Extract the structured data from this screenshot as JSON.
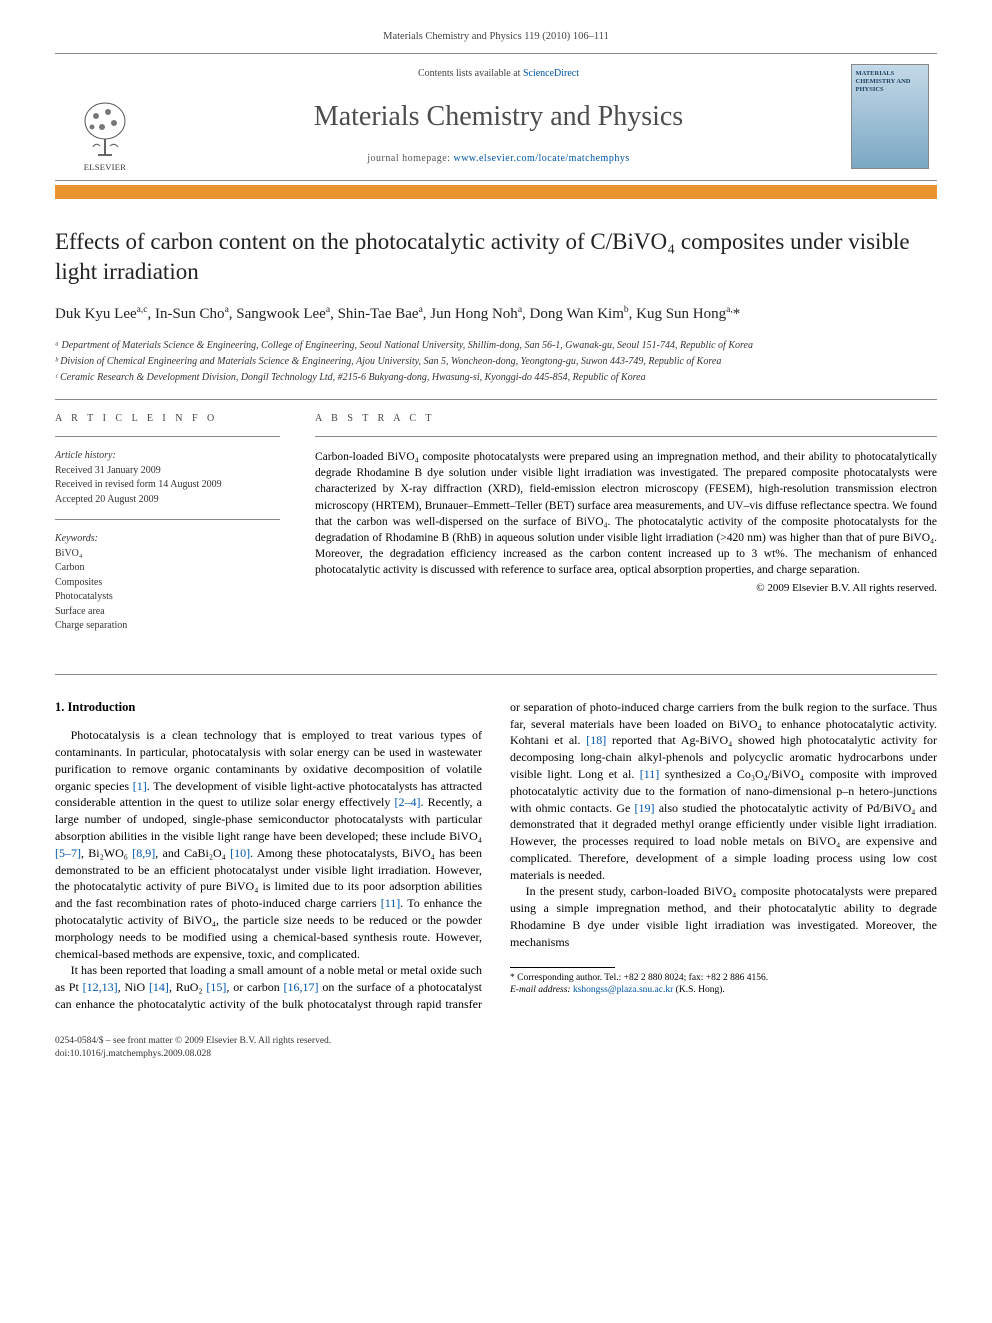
{
  "header_citation": "Materials Chemistry and Physics 119 (2010) 106–111",
  "banner": {
    "contents_prefix": "Contents lists available at ",
    "contents_link": "ScienceDirect",
    "journal_name": "Materials Chemistry and Physics",
    "homepage_prefix": "journal homepage: ",
    "homepage_url": "www.elsevier.com/locate/matchemphys",
    "publisher": "ELSEVIER",
    "cover_text": "MATERIALS CHEMISTRY AND PHYSICS"
  },
  "title": "Effects of carbon content on the photocatalytic activity of C/BiVO₄ composites under visible light irradiation",
  "authors_html": "Duk Kyu Lee<sup>a,c</sup>, In-Sun Cho<sup>a</sup>, Sangwook Lee<sup>a</sup>, Shin-Tae Bae<sup>a</sup>, Jun Hong Noh<sup>a</sup>, Dong Wan Kim<sup>b</sup>, Kug Sun Hong<sup>a,</sup>*",
  "affiliations": [
    "ᵃ Department of Materials Science & Engineering, College of Engineering, Seoul National University, Shillim-dong, San 56-1, Gwanak-gu, Seoul 151-744, Republic of Korea",
    "ᵇ Division of Chemical Engineering and Materials Science & Engineering, Ajou University, San 5, Woncheon-dong, Yeongtong-gu, Suwon 443-749, Republic of Korea",
    "ᶜ Ceramic Research & Development Division, Dongil Technology Ltd, #215-6 Bukyang-dong, Hwasung-si, Kyonggi-do 445-854, Republic of Korea"
  ],
  "article_info": {
    "heading": "A R T I C L E   I N F O",
    "history_label": "Article history:",
    "received": "Received 31 January 2009",
    "revised": "Received in revised form 14 August 2009",
    "accepted": "Accepted 20 August 2009",
    "keywords_label": "Keywords:",
    "keywords": [
      "BiVO₄",
      "Carbon",
      "Composites",
      "Photocatalysts",
      "Surface area",
      "Charge separation"
    ]
  },
  "abstract": {
    "heading": "A B S T R A C T",
    "text": "Carbon-loaded BiVO₄ composite photocatalysts were prepared using an impregnation method, and their ability to photocatalytically degrade Rhodamine B dye solution under visible light irradiation was investigated. The prepared composite photocatalysts were characterized by X-ray diffraction (XRD), field-emission electron microscopy (FESEM), high-resolution transmission electron microscopy (HRTEM), Brunauer–Emmett–Teller (BET) surface area measurements, and UV–vis diffuse reflectance spectra. We found that the carbon was well-dispersed on the surface of BiVO₄. The photocatalytic activity of the composite photocatalysts for the degradation of Rhodamine B (RhB) in aqueous solution under visible light irradiation (>420 nm) was higher than that of pure BiVO₄. Moreover, the degradation efficiency increased as the carbon content increased up to 3 wt%. The mechanism of enhanced photocatalytic activity is discussed with reference to surface area, optical absorption properties, and charge separation.",
    "copyright": "© 2009 Elsevier B.V. All rights reserved."
  },
  "section1_heading": "1. Introduction",
  "body_paragraphs": [
    "Photocatalysis is a clean technology that is employed to treat various types of contaminants. In particular, photocatalysis with solar energy can be used in wastewater purification to remove organic contaminants by oxidative decomposition of volatile organic species <a href='#'>[1]</a>. The development of visible light-active photocatalysts has attracted considerable attention in the quest to utilize solar energy effectively <a href='#'>[2–4]</a>. Recently, a large number of undoped, single-phase semiconductor photocatalysts with particular absorption abilities in the visible light range have been developed; these include BiVO₄ <a href='#'>[5–7]</a>, Bi₂WO₆ <a href='#'>[8,9]</a>, and CaBi₂O₄ <a href='#'>[10]</a>. Among these photocatalysts, BiVO₄ has been demonstrated to be an efficient photocatalyst under visible light irradiation. However, the photocatalytic activity of pure BiVO₄ is limited due to its poor adsorption abilities and the fast recombination rates of photo-induced charge carriers <a href='#'>[11]</a>. To enhance the photocatalytic activity of BiVO₄, the particle size needs to be reduced or the powder morphology needs to be modified using a chemical-based synthesis route. However, chemical-based methods are expensive, toxic, and complicated.",
    "It has been reported that loading a small amount of a noble metal or metal oxide such as Pt <a href='#'>[12,13]</a>, NiO <a href='#'>[14]</a>, RuO₂ <a href='#'>[15]</a>, or carbon <a href='#'>[16,17]</a> on the surface of a photocatalyst can enhance the photocatalytic activity of the bulk photocatalyst through rapid transfer or separation of photo-induced charge carriers from the bulk region to the surface. Thus far, several materials have been loaded on BiVO₄ to enhance photocatalytic activity. Kohtani et al. <a href='#'>[18]</a> reported that Ag-BiVO₄ showed high photocatalytic activity for decomposing long-chain alkyl-phenols and polycyclic aromatic hydrocarbons under visible light. Long et al. <a href='#'>[11]</a> synthesized a Co₃O₄/BiVO₄ composite with improved photocatalytic activity due to the formation of nano-dimensional p–n hetero-junctions with ohmic contacts. Ge <a href='#'>[19]</a> also studied the photocatalytic activity of Pd/BiVO₄ and demonstrated that it degraded methyl orange efficiently under visible light irradiation. However, the processes required to load noble metals on BiVO₄ are expensive and complicated. Therefore, development of a simple loading process using low cost materials is needed.",
    "In the present study, carbon-loaded BiVO₄ composite photocatalysts were prepared using a simple impregnation method, and their photocatalytic ability to degrade Rhodamine B dye under visible light irradiation was investigated. Moreover, the mechanisms"
  ],
  "footnote": {
    "corr_label": "* Corresponding author. Tel.: +82 2 880 8024; fax: +82 2 886 4156.",
    "email_label": "E-mail address: ",
    "email": "kshongss@plaza.snu.ac.kr",
    "email_suffix": " (K.S. Hong)."
  },
  "footer": {
    "line1": "0254-0584/$ – see front matter © 2009 Elsevier B.V. All rights reserved.",
    "line2": "doi:10.1016/j.matchemphys.2009.08.028"
  }
}
